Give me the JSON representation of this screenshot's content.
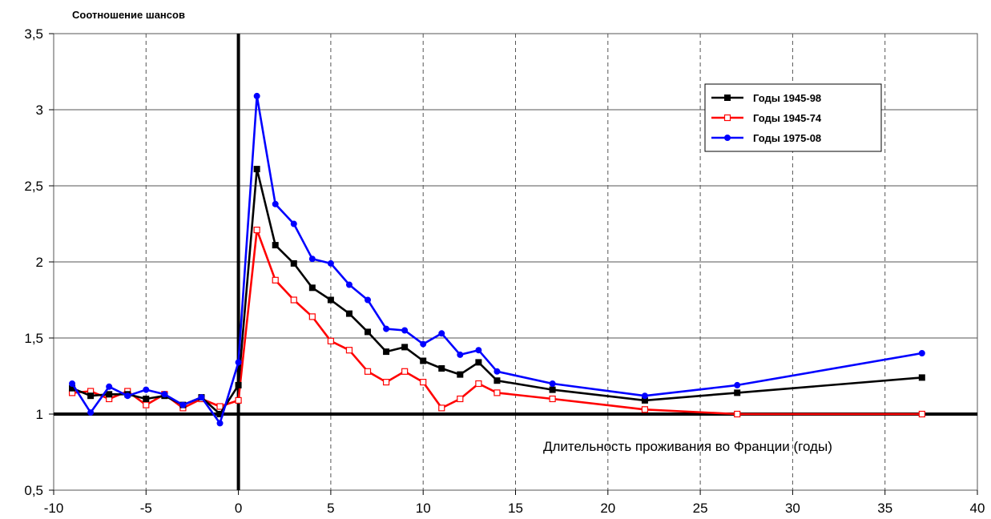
{
  "chart_data": {
    "type": "line",
    "title": "",
    "ylabel": "Соотношение шансов",
    "xlabel": "Длительность проживания во Франции (годы)",
    "xlim": [
      -10,
      40
    ],
    "ylim": [
      0.5,
      3.5
    ],
    "x_ticks": [
      -10,
      -5,
      0,
      5,
      10,
      15,
      20,
      25,
      30,
      35,
      40
    ],
    "x_tick_labels": [
      "-10",
      "-5",
      "0",
      "5",
      "10",
      "15",
      "20",
      "25",
      "30",
      "35",
      "40"
    ],
    "y_ticks": [
      0.5,
      1,
      1.5,
      2,
      2.5,
      3,
      3.5
    ],
    "y_tick_labels": [
      "0,5",
      "1",
      "1,5",
      "2",
      "2,5",
      "3",
      "3,5"
    ],
    "grid": true,
    "legend_position": "top-right",
    "series": [
      {
        "name": "Годы 1945-98",
        "color": "#000000",
        "marker": "filled-square",
        "x": [
          -9,
          -8,
          -7,
          -6,
          -5,
          -4,
          -3,
          -2,
          -1,
          0,
          1,
          2,
          3,
          4,
          5,
          6,
          7,
          8,
          9,
          10,
          11,
          12,
          13,
          14,
          17,
          22,
          27,
          37
        ],
        "y": [
          1.17,
          1.12,
          1.13,
          1.13,
          1.1,
          1.12,
          1.06,
          1.11,
          1.0,
          1.19,
          2.61,
          2.11,
          1.99,
          1.83,
          1.75,
          1.66,
          1.54,
          1.41,
          1.44,
          1.35,
          1.3,
          1.26,
          1.34,
          1.22,
          1.16,
          1.09,
          1.14,
          1.24
        ]
      },
      {
        "name": "Годы 1945-74",
        "color": "#ff0000",
        "marker": "open-square",
        "x": [
          -9,
          -8,
          -7,
          -6,
          -5,
          -4,
          -3,
          -2,
          -1,
          0,
          1,
          2,
          3,
          4,
          5,
          6,
          7,
          8,
          9,
          10,
          11,
          12,
          13,
          14,
          17,
          22,
          27,
          37
        ],
        "y": [
          1.14,
          1.15,
          1.1,
          1.15,
          1.06,
          1.13,
          1.04,
          1.1,
          1.05,
          1.09,
          2.21,
          1.88,
          1.75,
          1.64,
          1.48,
          1.42,
          1.28,
          1.21,
          1.28,
          1.21,
          1.04,
          1.1,
          1.2,
          1.14,
          1.1,
          1.03,
          1.0,
          1.0
        ]
      },
      {
        "name": "Годы 1975-08",
        "color": "#0000ff",
        "marker": "filled-circle",
        "x": [
          -9,
          -8,
          -7,
          -6,
          -5,
          -4,
          -3,
          -2,
          -1,
          0,
          1,
          2,
          3,
          4,
          5,
          6,
          7,
          8,
          9,
          10,
          11,
          12,
          13,
          14,
          17,
          22,
          27,
          37
        ],
        "y": [
          1.2,
          1.01,
          1.18,
          1.12,
          1.16,
          1.13,
          1.06,
          1.11,
          0.94,
          1.34,
          3.09,
          2.38,
          2.25,
          2.02,
          1.99,
          1.85,
          1.75,
          1.56,
          1.55,
          1.46,
          1.53,
          1.39,
          1.42,
          1.28,
          1.2,
          1.12,
          1.19,
          1.4
        ]
      }
    ]
  }
}
